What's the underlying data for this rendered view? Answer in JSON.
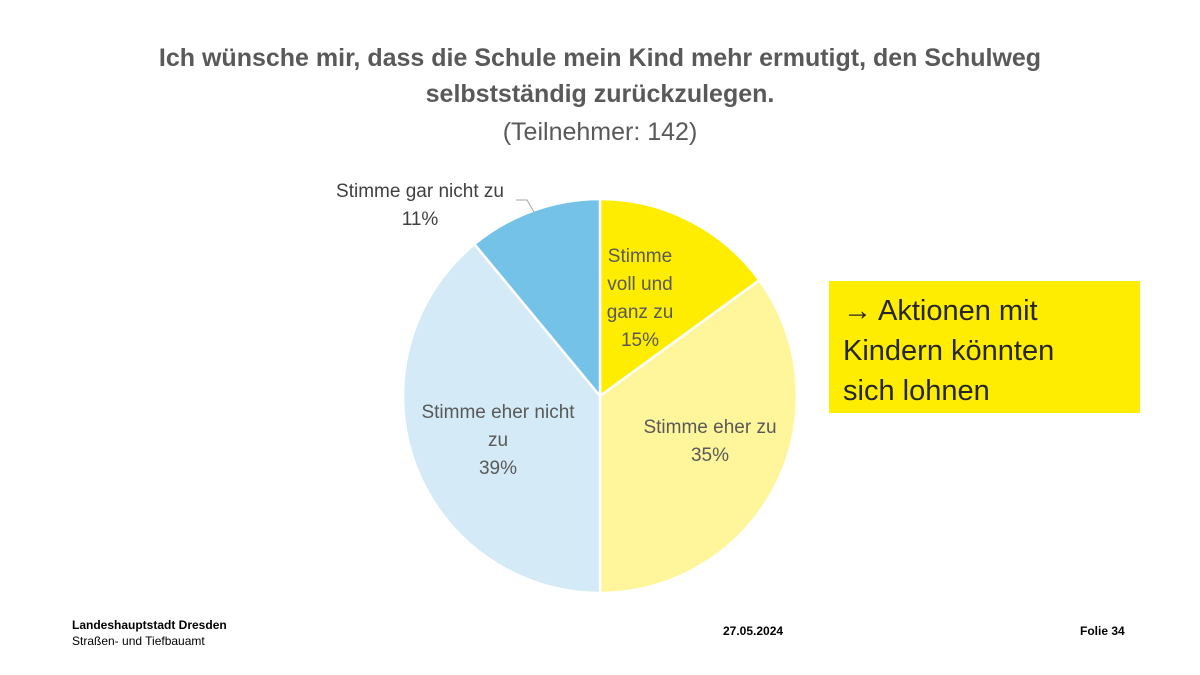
{
  "title": "Ich wünsche mir, dass die Schule mein Kind mehr ermutigt, den Schulweg selbstständig zurückzulegen.",
  "subtitle": "(Teilnehmer: 142)",
  "chart_data": {
    "type": "pie",
    "title": "Ich wünsche mir, dass die Schule mein Kind mehr ermutigt, den Schulweg selbstständig zurückzulegen.",
    "subtitle": "(Teilnehmer: 142)",
    "start_angle_deg": 0,
    "direction": "clockwise",
    "slices": [
      {
        "label_lines": [
          "Stimme",
          "voll und",
          "ganz zu"
        ],
        "value_label": "15%",
        "value": 15,
        "color": "#ffed00",
        "label_color": "#595959"
      },
      {
        "label_lines": [
          "Stimme eher zu"
        ],
        "value_label": "35%",
        "value": 35,
        "color": "#fff59a",
        "label_color": "#595959"
      },
      {
        "label_lines": [
          "Stimme eher nicht",
          "zu"
        ],
        "value_label": "39%",
        "value": 39,
        "color": "#d4eaf7",
        "label_color": "#595959"
      },
      {
        "label_lines": [
          "Stimme gar nicht zu"
        ],
        "value_label": "11%",
        "value": 11,
        "color": "#74c2e8",
        "label_color": "#404040",
        "label_outside": true
      }
    ]
  },
  "callout": {
    "arrow": "→",
    "lines": [
      "Aktionen mit",
      "Kindern könnten",
      "sich lohnen"
    ],
    "background": "#ffed00"
  },
  "footer": {
    "org_name": "Landeshauptstadt Dresden",
    "org_unit": "Straßen- und Tiefbauamt",
    "date": "27.05.2024",
    "slide": "Folie 34"
  }
}
